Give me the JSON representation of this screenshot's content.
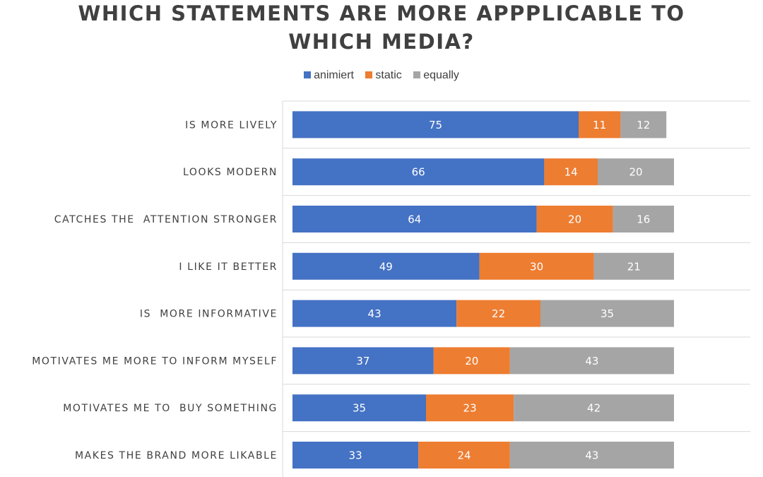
{
  "chart_data": {
    "type": "bar",
    "orientation": "horizontal",
    "stacked": true,
    "title": "WHICH STATEMENTS ARE MORE APPPLICABLE TO WHICH MEDIA?",
    "title_lines": [
      "WHICH STATEMENTS ARE MORE APPPLICABLE TO",
      "WHICH MEDIA?"
    ],
    "xlabel": "",
    "ylabel": "",
    "legend_position": "top",
    "grid": true,
    "categories": [
      "IS MORE LIVELY",
      "LOOKS MODERN",
      "CATCHES THE  ATTENTION STRONGER",
      "I LIKE IT BETTER",
      "IS  MORE INFORMATIVE",
      "MOTIVATES ME MORE TO INFORM MYSELF",
      "MOTIVATES ME TO  BUY SOMETHING",
      "MAKES THE BRAND MORE LIKABLE"
    ],
    "series": [
      {
        "name": "animiert",
        "color": "#4472c4",
        "values": [
          75,
          66,
          64,
          49,
          43,
          37,
          35,
          33
        ]
      },
      {
        "name": "static",
        "color": "#ed7d31",
        "values": [
          11,
          14,
          20,
          30,
          22,
          20,
          23,
          24
        ]
      },
      {
        "name": "equally",
        "color": "#a5a5a5",
        "values": [
          12,
          20,
          16,
          21,
          35,
          43,
          42,
          43
        ]
      }
    ]
  }
}
